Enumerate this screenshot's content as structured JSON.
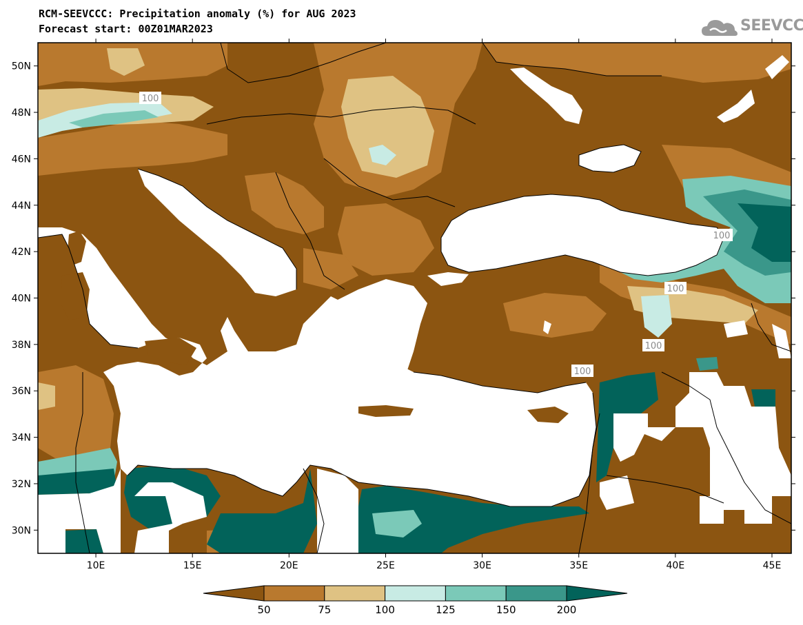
{
  "header": {
    "title_line1": "RCM-SEEVCCC: Precipitation anomaly (%) for AUG 2023",
    "title_line2": "Forecast start: 00Z01MAR2023",
    "logo_text": "SEEVCCC"
  },
  "map": {
    "lon_range": [
      7,
      46
    ],
    "lat_range": [
      29,
      51
    ],
    "lon_ticks": [
      {
        "value": 10,
        "label": "10E"
      },
      {
        "value": 15,
        "label": "15E"
      },
      {
        "value": 20,
        "label": "20E"
      },
      {
        "value": 25,
        "label": "25E"
      },
      {
        "value": 30,
        "label": "30E"
      },
      {
        "value": 35,
        "label": "35E"
      },
      {
        "value": 40,
        "label": "40E"
      },
      {
        "value": 45,
        "label": "45E"
      }
    ],
    "lat_ticks": [
      {
        "value": 30,
        "label": "30N"
      },
      {
        "value": 32,
        "label": "32N"
      },
      {
        "value": 34,
        "label": "34N"
      },
      {
        "value": 36,
        "label": "36N"
      },
      {
        "value": 38,
        "label": "38N"
      },
      {
        "value": 40,
        "label": "40N"
      },
      {
        "value": 42,
        "label": "42N"
      },
      {
        "value": 44,
        "label": "44N"
      },
      {
        "value": 46,
        "label": "46N"
      },
      {
        "value": 48,
        "label": "48N"
      },
      {
        "value": 50,
        "label": "50N"
      }
    ],
    "contour_labels": [
      "100",
      "100",
      "100",
      "100",
      "100"
    ]
  },
  "colorbar": {
    "labels": [
      "50",
      "75",
      "100",
      "125",
      "150",
      "200"
    ],
    "colors": [
      "#8c5511",
      "#b9792e",
      "#dfc283",
      "#c8ebe4",
      "#7bc9b8",
      "#3a978a",
      "#02635a"
    ]
  }
}
